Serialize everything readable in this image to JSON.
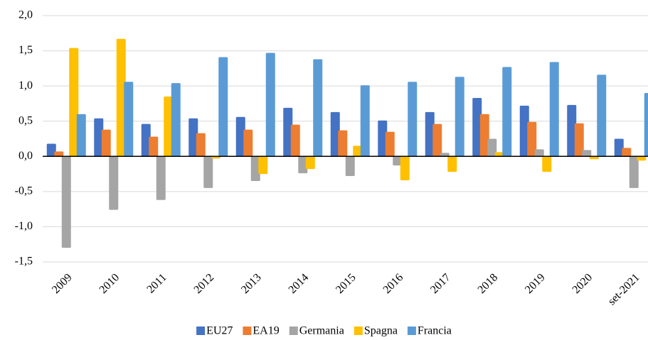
{
  "chart_data": {
    "type": "bar",
    "categories": [
      "2009",
      "2010",
      "2011",
      "2012",
      "2013",
      "2014",
      "2015",
      "2016",
      "2017",
      "2018",
      "2019",
      "2020",
      "set-2021"
    ],
    "series": [
      {
        "name": "EU27",
        "color": "#4472c4",
        "values": [
          0.18,
          0.54,
          0.46,
          0.54,
          0.56,
          0.69,
          0.63,
          0.51,
          0.63,
          0.83,
          0.72,
          0.73,
          0.25
        ]
      },
      {
        "name": "EA19",
        "color": "#ed7d31",
        "values": [
          0.07,
          0.38,
          0.28,
          0.33,
          0.38,
          0.45,
          0.37,
          0.35,
          0.46,
          0.6,
          0.49,
          0.47,
          0.12
        ]
      },
      {
        "name": "Germania",
        "color": "#a5a5a5",
        "values": [
          -1.3,
          -0.76,
          -0.62,
          -0.45,
          -0.35,
          -0.24,
          -0.28,
          -0.13,
          0.05,
          0.25,
          0.1,
          0.09,
          -0.45
        ]
      },
      {
        "name": "Spagna",
        "color": "#ffc000",
        "values": [
          1.54,
          1.67,
          0.85,
          -0.03,
          -0.25,
          -0.18,
          0.15,
          -0.34,
          -0.22,
          0.06,
          -0.22,
          -0.04,
          -0.06
        ]
      },
      {
        "name": "Francia",
        "color": "#5b9bd5",
        "values": [
          0.6,
          1.06,
          1.04,
          1.41,
          1.47,
          1.38,
          1.01,
          1.06,
          1.13,
          1.27,
          1.34,
          1.16,
          0.9
        ]
      }
    ],
    "ylim": [
      -1.5,
      2.0
    ],
    "yticks": [
      {
        "value": -1.5,
        "label": "-1,5"
      },
      {
        "value": -1,
        "label": "-1,0"
      },
      {
        "value": -0.5,
        "label": "-0,5"
      },
      {
        "value": 0,
        "label": "0,0"
      },
      {
        "value": 0.5,
        "label": "0,5"
      },
      {
        "value": 1,
        "label": "1,0"
      },
      {
        "value": 1.5,
        "label": "1,5"
      },
      {
        "value": 2,
        "label": "2,0"
      }
    ],
    "grid": true,
    "legend": "bottom"
  }
}
